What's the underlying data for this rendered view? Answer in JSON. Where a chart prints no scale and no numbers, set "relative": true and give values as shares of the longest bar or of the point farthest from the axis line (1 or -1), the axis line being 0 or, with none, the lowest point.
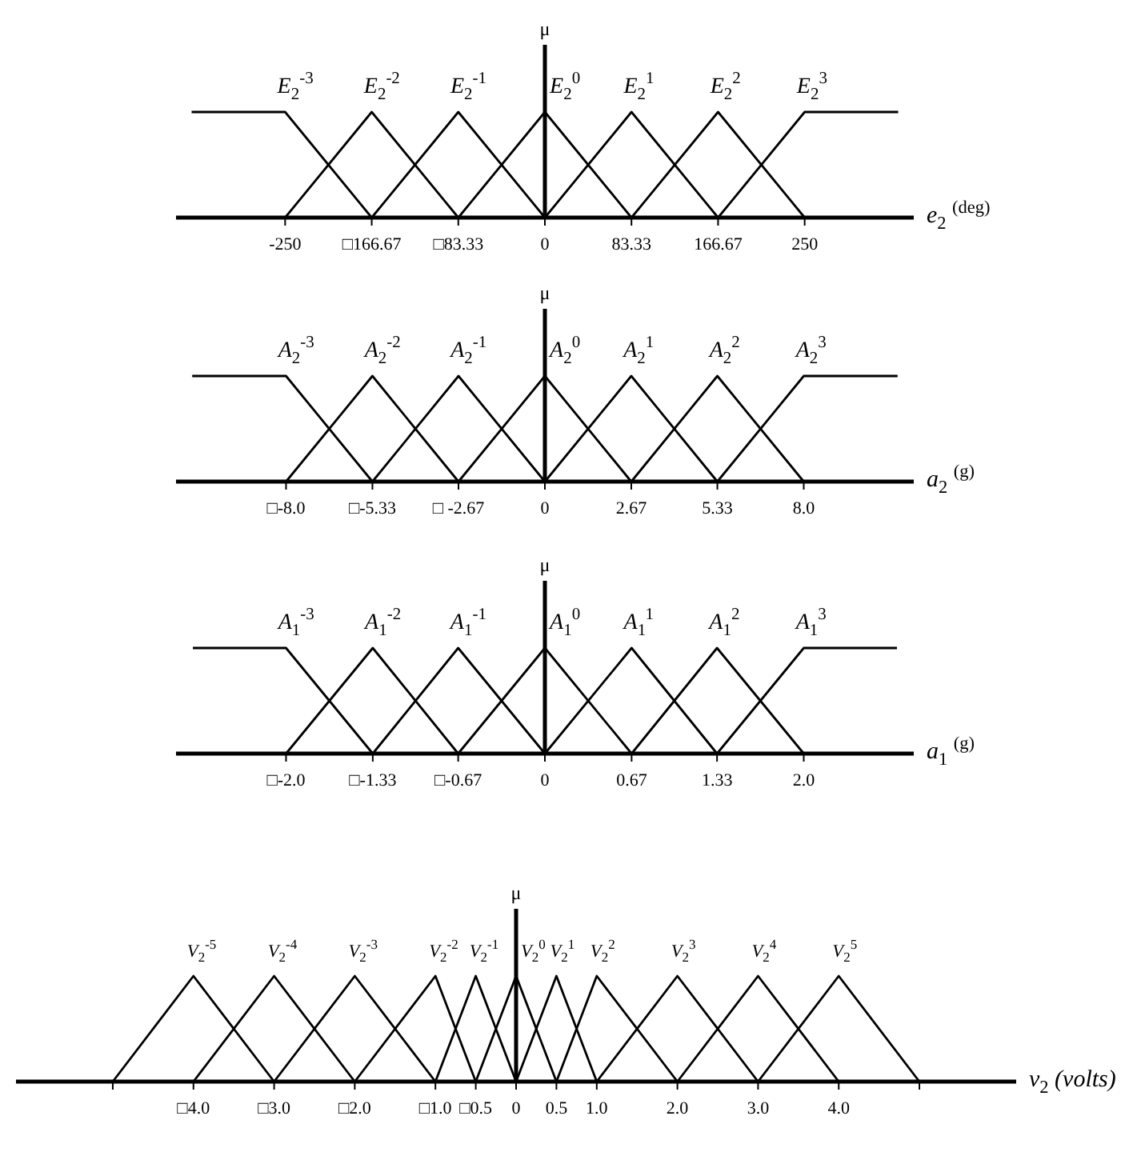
{
  "chart_data": [
    {
      "type": "line",
      "relative": true,
      "ylabel": "μ",
      "xlabel": "e$_{2}$ $^{(deg)}$",
      "xlim": [
        -355,
        355
      ],
      "xticks": [
        {
          "value": -250,
          "label": "-250"
        },
        {
          "value": -166.67,
          "label": "□166.67"
        },
        {
          "value": -83.33,
          "label": "□83.33"
        },
        0,
        83.33,
        166.67,
        250
      ],
      "series": [
        {
          "name": "E$_{2}$$^{-3}$",
          "color": "#000000",
          "x": [
            -340,
            -250,
            -166.67
          ],
          "values": [
            1,
            1,
            0
          ]
        },
        {
          "name": "E$_{2}$$^{-2}$",
          "color": "#000000",
          "x": [
            -250,
            -166.67,
            -83.33
          ],
          "values": [
            0,
            1,
            0
          ]
        },
        {
          "name": "E$_{2}$$^{-1}$",
          "color": "#000000",
          "x": [
            -166.67,
            -83.33,
            0
          ],
          "values": [
            0,
            1,
            0
          ]
        },
        {
          "name": "E$_{2}$$^{0}$",
          "color": "#000000",
          "x": [
            -83.33,
            0,
            83.33
          ],
          "values": [
            0,
            1,
            0
          ]
        },
        {
          "name": "E$_{2}$$^{1}$",
          "color": "#000000",
          "x": [
            0,
            83.33,
            166.67
          ],
          "values": [
            0,
            1,
            0
          ]
        },
        {
          "name": "E$_{2}$$^{2}$",
          "color": "#000000",
          "x": [
            83.33,
            166.67,
            250
          ],
          "values": [
            0,
            1,
            0
          ]
        },
        {
          "name": "E$_{2}$$^{3}$",
          "color": "#000000",
          "x": [
            166.67,
            250,
            340
          ],
          "values": [
            0,
            1,
            1
          ]
        }
      ]
    },
    {
      "type": "line",
      "relative": true,
      "ylabel": "μ",
      "xlabel": "a$_{2}$ $^{(g)}$",
      "xlim": [
        -11.4,
        11.4
      ],
      "xticks": [
        {
          "value": -8,
          "label": "□-8.0"
        },
        {
          "value": -5.33,
          "label": "□-5.33"
        },
        {
          "value": -2.67,
          "label": "□ -2.67"
        },
        0,
        2.67,
        5.33,
        {
          "value": 8,
          "label": "8.0"
        }
      ],
      "series": [
        {
          "name": "A$_{2}$$^{-3}$",
          "color": "#000000",
          "x": [
            -10.9,
            -8,
            -5.33
          ],
          "values": [
            1,
            1,
            0
          ]
        },
        {
          "name": "A$_{2}$$^{-2}$",
          "color": "#000000",
          "x": [
            -8,
            -5.33,
            -2.67
          ],
          "values": [
            0,
            1,
            0
          ]
        },
        {
          "name": "A$_{2}$$^{-1}$",
          "color": "#000000",
          "x": [
            -5.33,
            -2.67,
            0
          ],
          "values": [
            0,
            1,
            0
          ]
        },
        {
          "name": "A$_{2}$$^{0}$",
          "color": "#000000",
          "x": [
            -2.67,
            0,
            2.67
          ],
          "values": [
            0,
            1,
            0
          ]
        },
        {
          "name": "A$_{2}$$^{1}$",
          "color": "#000000",
          "x": [
            0,
            2.67,
            5.33
          ],
          "values": [
            0,
            1,
            0
          ]
        },
        {
          "name": "A$_{2}$$^{2}$",
          "color": "#000000",
          "x": [
            2.67,
            5.33,
            8
          ],
          "values": [
            0,
            1,
            0
          ]
        },
        {
          "name": "A$_{2}$$^{3}$",
          "color": "#000000",
          "x": [
            5.33,
            8,
            10.9
          ],
          "values": [
            0,
            1,
            1
          ]
        }
      ]
    },
    {
      "type": "line",
      "relative": true,
      "ylabel": "μ",
      "xlabel": "a$_{1}$ $^{(g)}$",
      "xlim": [
        -2.85,
        2.85
      ],
      "xticks": [
        {
          "value": -2,
          "label": "□-2.0"
        },
        {
          "value": -1.33,
          "label": "□-1.33"
        },
        {
          "value": -0.67,
          "label": "□-0.67"
        },
        0,
        0.67,
        1.33,
        {
          "value": 2,
          "label": "2.0"
        }
      ],
      "series": [
        {
          "name": "A$_{1}$$^{-3}$",
          "color": "#000000",
          "x": [
            -2.72,
            -2,
            -1.33
          ],
          "values": [
            1,
            1,
            0
          ]
        },
        {
          "name": "A$_{1}$$^{-2}$",
          "color": "#000000",
          "x": [
            -2,
            -1.33,
            -0.67
          ],
          "values": [
            0,
            1,
            0
          ]
        },
        {
          "name": "A$_{1}$$^{-1}$",
          "color": "#000000",
          "x": [
            -1.33,
            -0.67,
            0
          ],
          "values": [
            0,
            1,
            0
          ]
        },
        {
          "name": "A$_{1}$$^{0}$",
          "color": "#000000",
          "x": [
            -0.67,
            0,
            0.67
          ],
          "values": [
            0,
            1,
            0
          ]
        },
        {
          "name": "A$_{1}$$^{1}$",
          "color": "#000000",
          "x": [
            0,
            0.67,
            1.33
          ],
          "values": [
            0,
            1,
            0
          ]
        },
        {
          "name": "A$_{1}$$^{2}$",
          "color": "#000000",
          "x": [
            0.67,
            1.33,
            2
          ],
          "values": [
            0,
            1,
            0
          ]
        },
        {
          "name": "A$_{1}$$^{3}$",
          "color": "#000000",
          "x": [
            1.33,
            2,
            2.72
          ],
          "values": [
            0,
            1,
            1
          ]
        }
      ]
    },
    {
      "type": "line",
      "relative": true,
      "ylabel": "μ",
      "xlabel": "v$_{2}$ (volts)",
      "xlim": [
        -6.2,
        6.2
      ],
      "xticks": [
        {
          "value": -5,
          "label": null
        },
        {
          "value": -4,
          "label": "□4.0"
        },
        {
          "value": -3,
          "label": "□3.0"
        },
        {
          "value": -2,
          "label": "□2.0"
        },
        {
          "value": -1,
          "label": "□1.0"
        },
        {
          "value": -0.5,
          "label": "□0.5"
        },
        0,
        0.5,
        {
          "value": 1,
          "label": "1.0"
        },
        {
          "value": 2,
          "label": "2.0"
        },
        {
          "value": 3,
          "label": "3.0"
        },
        {
          "value": 4,
          "label": "4.0"
        },
        {
          "value": 5,
          "label": null
        }
      ],
      "series": [
        {
          "name": "V$_{2}$$^{-5}$",
          "color": "#000000",
          "x": [
            -5,
            -4,
            -3
          ],
          "values": [
            0,
            1,
            0
          ]
        },
        {
          "name": "V$_{2}$$^{-4}$",
          "color": "#000000",
          "x": [
            -4,
            -3,
            -2
          ],
          "values": [
            0,
            1,
            0
          ]
        },
        {
          "name": "V$_{2}$$^{-3}$",
          "color": "#000000",
          "x": [
            -3,
            -2,
            -1
          ],
          "values": [
            0,
            1,
            0
          ]
        },
        {
          "name": "V$_{2}$$^{-2}$",
          "color": "#000000",
          "x": [
            -2,
            -1,
            -0.5
          ],
          "values": [
            0,
            1,
            0
          ]
        },
        {
          "name": "V$_{2}$$^{-1}$",
          "color": "#000000",
          "x": [
            -1,
            -0.5,
            0
          ],
          "values": [
            0,
            1,
            0
          ]
        },
        {
          "name": "V$_{2}$$^{0}$",
          "color": "#000000",
          "x": [
            -0.5,
            0,
            0.5
          ],
          "values": [
            0,
            1,
            0
          ]
        },
        {
          "name": "V$_{2}$$^{1}$",
          "color": "#000000",
          "x": [
            0,
            0.5,
            1
          ],
          "values": [
            0,
            1,
            0
          ]
        },
        {
          "name": "V$_{2}$$^{2}$",
          "color": "#000000",
          "x": [
            0.5,
            1,
            2
          ],
          "values": [
            0,
            1,
            0
          ]
        },
        {
          "name": "V$_{2}$$^{3}$",
          "color": "#000000",
          "x": [
            1,
            2,
            3
          ],
          "values": [
            0,
            1,
            0
          ]
        },
        {
          "name": "V$_{2}$$^{4}$",
          "color": "#000000",
          "x": [
            2,
            3,
            4
          ],
          "values": [
            0,
            1,
            0
          ]
        },
        {
          "name": "V$_{2}$$^{5}$",
          "color": "#000000",
          "x": [
            3,
            4,
            5
          ],
          "values": [
            0,
            1,
            0
          ]
        }
      ]
    }
  ]
}
